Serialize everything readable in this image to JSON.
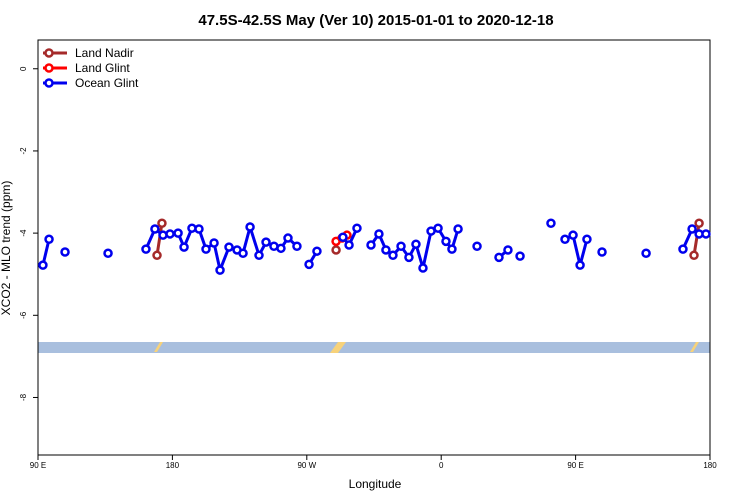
{
  "chart_data": {
    "type": "line",
    "title": "47.5S-42.5S May (Ver 10)   2015-01-01 to 2020-12-18",
    "xlabel": "Longitude",
    "ylabel": "XCO2 - MLO trend (ppm)",
    "xlim": [
      90,
      540
    ],
    "ylim": [
      -9.4,
      0.7
    ],
    "xticks": [
      {
        "value": 90,
        "label": "90 E"
      },
      180,
      {
        "value": 270,
        "label": "90 W"
      },
      {
        "value": 360,
        "label": "0"
      },
      {
        "value": 450,
        "label": "90 E"
      },
      {
        "value": 540,
        "label": "180"
      }
    ],
    "yticks": [
      0,
      -2,
      -4,
      -6,
      -8
    ],
    "legend": "upper left",
    "series": [
      {
        "name": "Land Nadir",
        "color": "#a52a2a",
        "x": [
          169.7,
          173.0,
          null,
          289.6,
          null,
          529.3,
          532.7
        ],
        "values": [
          -4.54,
          -3.76,
          null,
          -4.41,
          null,
          -4.54,
          -3.76
        ]
      },
      {
        "name": "Land Glint",
        "color": "#ff0000",
        "x": [
          289.6,
          293.6,
          296.9
        ],
        "values": [
          -4.2,
          -4.12,
          -4.05
        ]
      },
      {
        "name": "Ocean Glint",
        "color": "#0000ee",
        "x": [
          93.3,
          97.4,
          null,
          108.1,
          null,
          136.9,
          null,
          162.3,
          168.3,
          173.7,
          178.4,
          183.8,
          187.8,
          193.1,
          197.8,
          202.5,
          207.9,
          211.9,
          217.9,
          223.3,
          227.3,
          232.0,
          238.0,
          242.7,
          248.0,
          252.7,
          257.4,
          263.4,
          null,
          271.5,
          276.8,
          null,
          294.2,
          298.3,
          303.6,
          null,
          313.0,
          318.3,
          323.0,
          327.7,
          333.1,
          338.4,
          343.1,
          347.8,
          353.2,
          357.9,
          363.2,
          367.2,
          371.3,
          null,
          384.0,
          null,
          398.7,
          404.7,
          null,
          412.8,
          null,
          433.5,
          null,
          442.9,
          448.3,
          453.0,
          457.6,
          null,
          467.7,
          null,
          497.2,
          null,
          521.9,
          528.0,
          532.7,
          537.3
        ],
        "values": [
          -4.78,
          -4.15,
          null,
          -4.46,
          null,
          -4.49,
          null,
          -4.39,
          -3.9,
          -4.05,
          -4.02,
          -4.0,
          -4.34,
          -3.88,
          -3.9,
          -4.39,
          -4.24,
          -4.9,
          -4.34,
          -4.41,
          -4.49,
          -3.85,
          -4.54,
          -4.22,
          -4.32,
          -4.37,
          -4.12,
          -4.32,
          null,
          -4.76,
          -4.44,
          null,
          -4.1,
          -4.29,
          -3.88,
          null,
          -4.29,
          -4.02,
          -4.41,
          -4.54,
          -4.32,
          -4.59,
          -4.27,
          -4.85,
          -3.95,
          -3.88,
          -4.2,
          -4.39,
          -3.9,
          null,
          -4.32,
          null,
          -4.59,
          -4.41,
          null,
          -4.56,
          null,
          -3.76,
          null,
          -4.15,
          -4.05,
          -4.78,
          -4.15,
          null,
          -4.46,
          null,
          -4.49,
          null,
          -4.39,
          -3.9,
          -4.02,
          -4.02
        ]
      }
    ]
  }
}
